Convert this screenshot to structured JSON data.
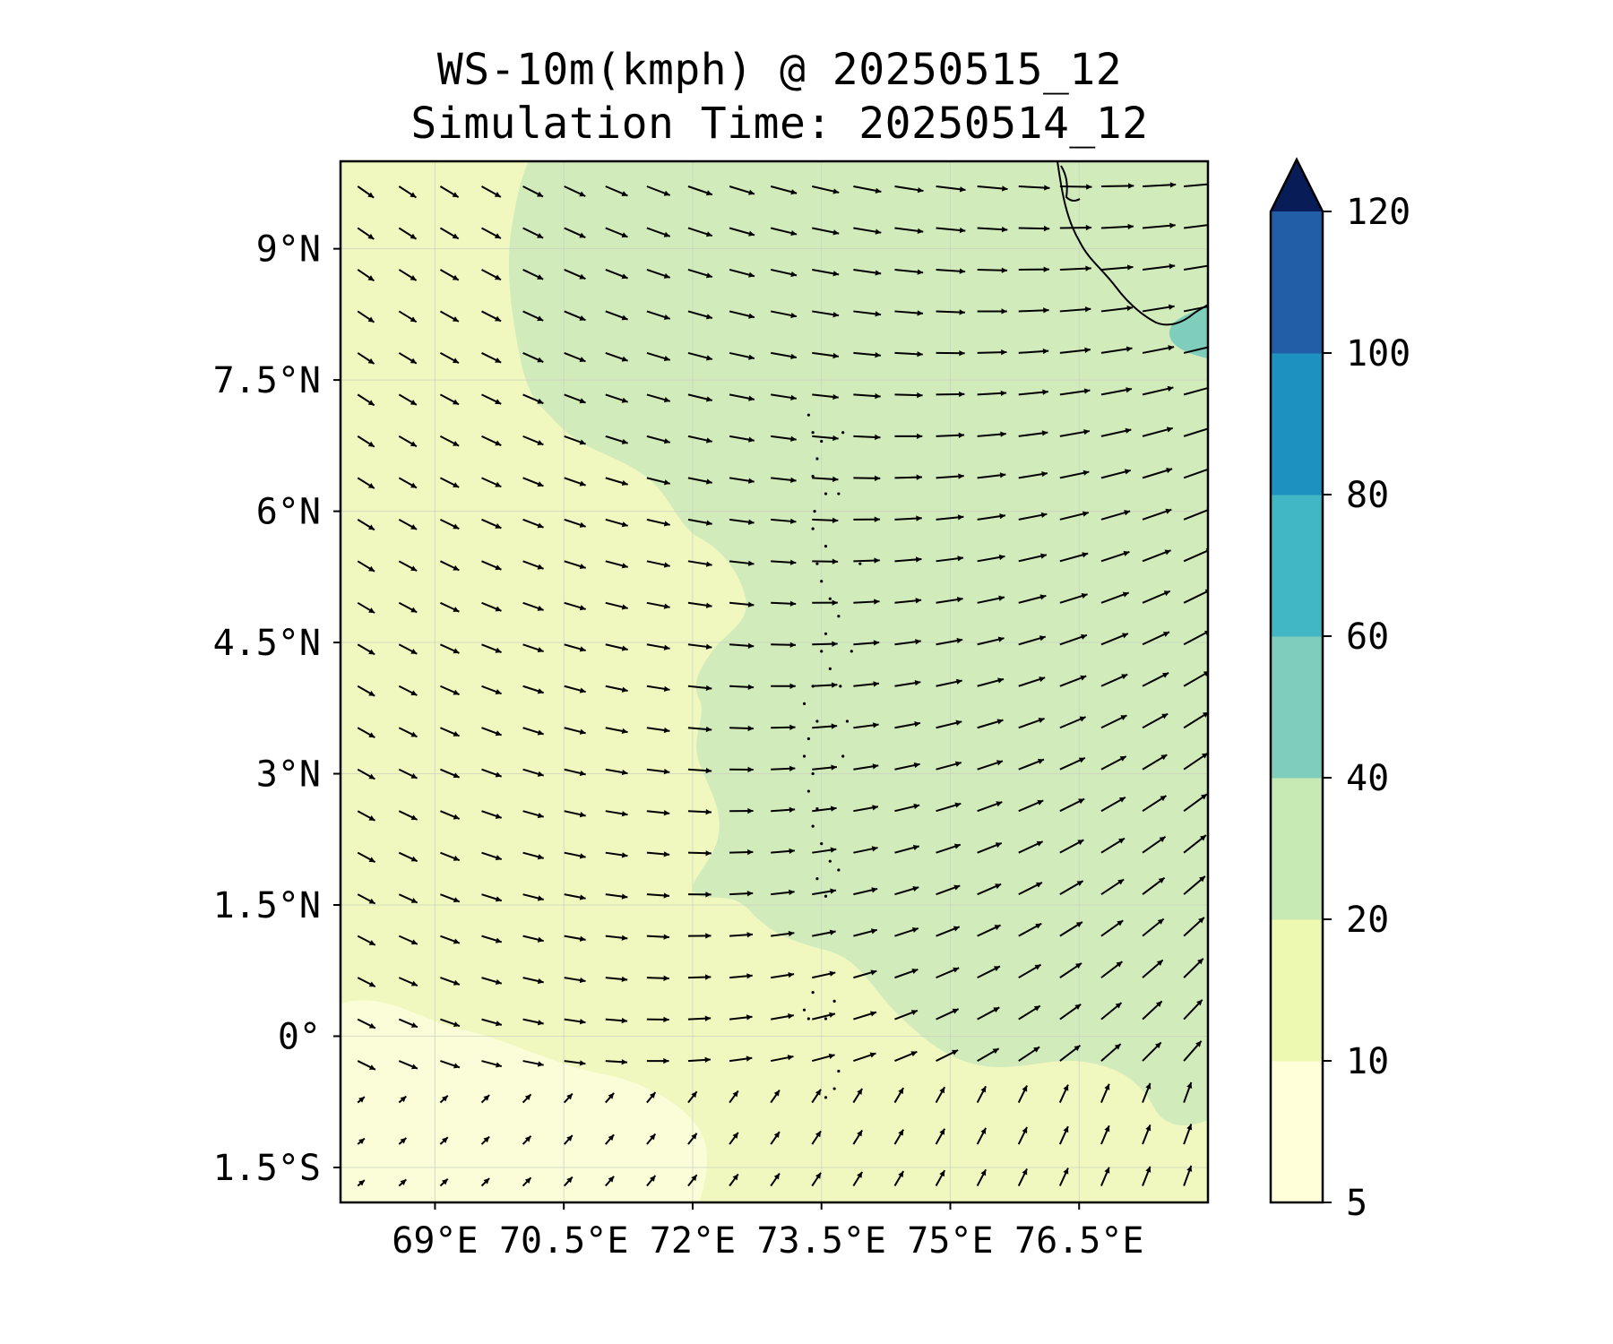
{
  "title": {
    "line1": "WS-10m(kmph) @ 20250515_12",
    "line2": "Simulation Time: 20250514_12"
  },
  "map": {
    "lon_range": [
      67.9,
      78.0
    ],
    "lat_range": [
      -1.9,
      10.0
    ],
    "x_ticks": [
      {
        "value": 69.0,
        "label": "69°E"
      },
      {
        "value": 70.5,
        "label": "70.5°E"
      },
      {
        "value": 72.0,
        "label": "72°E"
      },
      {
        "value": 73.5,
        "label": "73.5°E"
      },
      {
        "value": 75.0,
        "label": "75°E"
      },
      {
        "value": 76.5,
        "label": "76.5°E"
      }
    ],
    "y_ticks": [
      {
        "value": 9.0,
        "label": "9°N"
      },
      {
        "value": 7.5,
        "label": "7.5°N"
      },
      {
        "value": 6.0,
        "label": "6°N"
      },
      {
        "value": 4.5,
        "label": "4.5°N"
      },
      {
        "value": 3.0,
        "label": "3°N"
      },
      {
        "value": 1.5,
        "label": "1.5°N"
      },
      {
        "value": 0.0,
        "label": "0°"
      },
      {
        "value": -1.5,
        "label": "1.5°S"
      }
    ],
    "gridlines": true
  },
  "colorbar": {
    "levels": [
      5,
      10,
      20,
      40,
      60,
      80,
      100,
      120
    ],
    "labels": [
      "5",
      "10",
      "20",
      "40",
      "60",
      "80",
      "100",
      "120"
    ],
    "colors": [
      "#ffffd9",
      "#edf8b1",
      "#c7e9b4",
      "#7fcdbb",
      "#41b6c4",
      "#1d91c0",
      "#225ea8",
      "#253494"
    ],
    "extend_color": "#081d58",
    "extend": "max"
  },
  "colors": {
    "field_low": "#f0f8c0",
    "field_calm": "#fbfdd8",
    "field_mid": "#d2ebbb",
    "field_high": "#7fcdbb",
    "arrow": "#000000",
    "coast": "#000000"
  }
}
